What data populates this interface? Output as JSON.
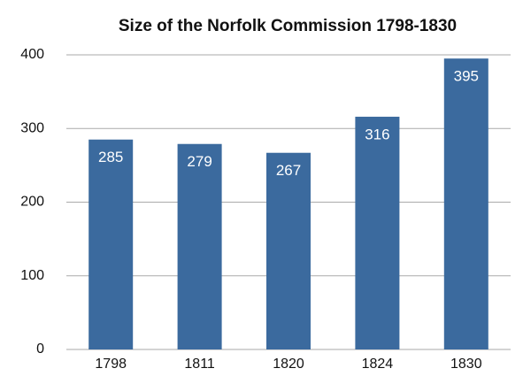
{
  "chart_data": {
    "type": "bar",
    "title": "Size of the Norfolk Commission 1798-1830",
    "categories": [
      "1798",
      "1811",
      "1820",
      "1824",
      "1830"
    ],
    "values": [
      285,
      279,
      267,
      316,
      395
    ],
    "color": "#3b6a9e",
    "ylim": [
      0,
      400
    ],
    "yticks": [
      0,
      100,
      200,
      300,
      400
    ],
    "grid": true
  }
}
